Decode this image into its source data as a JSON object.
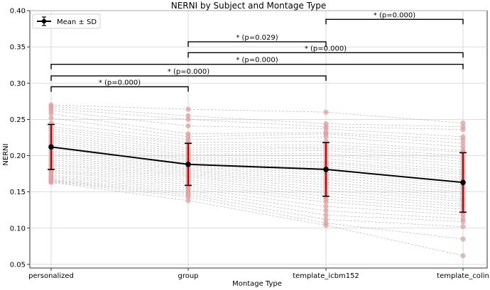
{
  "chart_data": {
    "type": "line",
    "title": "NERNI by Subject and Montage Type",
    "xlabel": "Montage Type",
    "ylabel": "NERNI",
    "categories": [
      "personalized",
      "group",
      "template_icbm152",
      "template_colin"
    ],
    "ylim": [
      0.045,
      0.4
    ],
    "yticks": [
      "0.05",
      "0.10",
      "0.15",
      "0.20",
      "0.25",
      "0.30",
      "0.35",
      "0.40"
    ],
    "grid": true,
    "legend": {
      "placement": "top-left",
      "entries": [
        "Mean ± SD"
      ]
    },
    "mean_series": {
      "name": "Mean ± SD",
      "values": [
        0.212,
        0.188,
        0.181,
        0.163
      ],
      "sd": [
        0.031,
        0.029,
        0.037,
        0.041
      ]
    },
    "subjects": [
      [
        0.27,
        0.264,
        0.26,
        0.245
      ],
      [
        0.268,
        0.255,
        0.244,
        0.24
      ],
      [
        0.265,
        0.25,
        0.24,
        0.236
      ],
      [
        0.262,
        0.241,
        0.237,
        0.226
      ],
      [
        0.258,
        0.23,
        0.232,
        0.222
      ],
      [
        0.252,
        0.226,
        0.23,
        0.217
      ],
      [
        0.245,
        0.222,
        0.226,
        0.212
      ],
      [
        0.24,
        0.218,
        0.22,
        0.207
      ],
      [
        0.237,
        0.215,
        0.215,
        0.205
      ],
      [
        0.234,
        0.211,
        0.212,
        0.2
      ],
      [
        0.23,
        0.208,
        0.21,
        0.196
      ],
      [
        0.227,
        0.205,
        0.207,
        0.192
      ],
      [
        0.224,
        0.202,
        0.203,
        0.188
      ],
      [
        0.221,
        0.2,
        0.2,
        0.184
      ],
      [
        0.218,
        0.197,
        0.196,
        0.18
      ],
      [
        0.215,
        0.195,
        0.192,
        0.177
      ],
      [
        0.212,
        0.193,
        0.19,
        0.174
      ],
      [
        0.209,
        0.19,
        0.187,
        0.17
      ],
      [
        0.206,
        0.188,
        0.184,
        0.167
      ],
      [
        0.203,
        0.186,
        0.18,
        0.163
      ],
      [
        0.2,
        0.184,
        0.177,
        0.16
      ],
      [
        0.197,
        0.182,
        0.174,
        0.157
      ],
      [
        0.194,
        0.18,
        0.17,
        0.154
      ],
      [
        0.191,
        0.178,
        0.167,
        0.15
      ],
      [
        0.188,
        0.176,
        0.163,
        0.147
      ],
      [
        0.186,
        0.174,
        0.16,
        0.143
      ],
      [
        0.183,
        0.172,
        0.156,
        0.14
      ],
      [
        0.18,
        0.17,
        0.152,
        0.137
      ],
      [
        0.178,
        0.167,
        0.148,
        0.133
      ],
      [
        0.176,
        0.164,
        0.144,
        0.13
      ],
      [
        0.173,
        0.161,
        0.14,
        0.126
      ],
      [
        0.171,
        0.158,
        0.136,
        0.122
      ],
      [
        0.169,
        0.155,
        0.13,
        0.118
      ],
      [
        0.167,
        0.152,
        0.124,
        0.113
      ],
      [
        0.166,
        0.149,
        0.118,
        0.109
      ],
      [
        0.165,
        0.146,
        0.112,
        0.102
      ],
      [
        0.164,
        0.143,
        0.107,
        0.085
      ],
      [
        0.163,
        0.138,
        0.104,
        0.062
      ]
    ],
    "significance": [
      {
        "from": 0,
        "to": 1,
        "label": "* (p=0.000)",
        "level": 0.295
      },
      {
        "from": 0,
        "to": 2,
        "label": "* (p=0.000)",
        "level": 0.31
      },
      {
        "from": 0,
        "to": 3,
        "label": "* (p=0.000)",
        "level": 0.326
      },
      {
        "from": 1,
        "to": 2,
        "label": "* (p=0.029)",
        "level": 0.357
      },
      {
        "from": 1,
        "to": 3,
        "label": "* (p=0.000)",
        "level": 0.342
      },
      {
        "from": 2,
        "to": 3,
        "label": "* (p=0.000)",
        "level": 0.388
      }
    ],
    "colors": {
      "points": "#dda0a0",
      "subject_lines": "#9a9a9a",
      "mean_line": "#000000",
      "error_bars": "#b30000",
      "grid": "#d0d0d0"
    }
  }
}
